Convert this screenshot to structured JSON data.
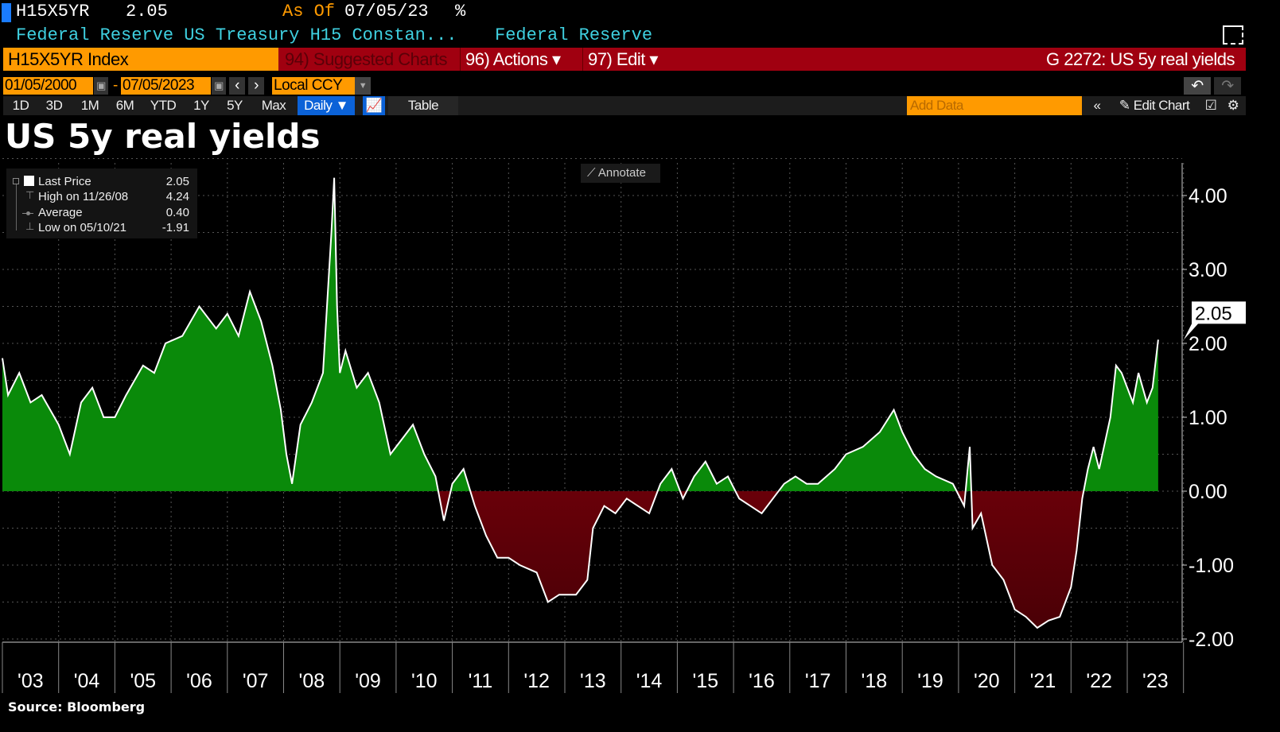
{
  "header": {
    "ticker": "H15X5YR",
    "price": "2.05",
    "as_of_label": "As Of",
    "as_of_date": "07/05/23",
    "unit": "%",
    "description": "Federal Reserve US Treasury H15 Constan...",
    "source_name": "Federal Reserve"
  },
  "command_bar": {
    "security": "H15X5YR Index",
    "suggested": "94) Suggested Charts",
    "actions": "96) Actions ▾",
    "edit": "97) Edit ▾",
    "chart_id": "G 2272: US 5y real yields"
  },
  "date_row": {
    "start": "01/05/2000",
    "sep": "-",
    "end": "07/05/2023",
    "currency": "Local CCY"
  },
  "toolbar": {
    "ranges": [
      "1D",
      "3D",
      "1M",
      "6M",
      "YTD",
      "1Y",
      "5Y",
      "Max"
    ],
    "frequency": "Daily ▼",
    "table": "Table",
    "add_data_placeholder": "Add Data",
    "edit_chart": "Edit Chart"
  },
  "legend": {
    "last_label": "Last Price",
    "last_value": "2.05",
    "high_label": "High on 11/26/08",
    "high_value": "4.24",
    "avg_label": "Average",
    "avg_value": "0.40",
    "low_label": "Low on 05/10/21",
    "low_value": "-1.91"
  },
  "annotate": "Annotate",
  "source": "Source: Bloomberg",
  "colors": {
    "positive": "#0a8a0a",
    "negative": "#a00010",
    "line": "#ffffff",
    "orange": "#ff9a00"
  },
  "chart_data": {
    "type": "area",
    "title": "US 5y real yields",
    "ylabel": "%",
    "ylim": [
      -2.1,
      4.6
    ],
    "xlim": [
      2003.0,
      2023.95
    ],
    "yticks": [
      4,
      3,
      2,
      1,
      0,
      -1,
      -2
    ],
    "ytick_labels": [
      "4.00",
      "3.00",
      "2.00",
      "1.00",
      "0.00",
      "-1.00",
      "-2.00"
    ],
    "xtick_labels": [
      "'03",
      "'04",
      "'05",
      "'06",
      "'07",
      "'08",
      "'09",
      "'10",
      "'11",
      "'12",
      "'13",
      "'14",
      "'15",
      "'16",
      "'17",
      "'18",
      "'19",
      "'20",
      "'21",
      "'22",
      "'23"
    ],
    "last_value_label": "2.05",
    "grid": true,
    "x": [
      2003.0,
      2003.1,
      2003.3,
      2003.5,
      2003.7,
      2004.0,
      2004.2,
      2004.4,
      2004.6,
      2004.8,
      2005.0,
      2005.2,
      2005.5,
      2005.7,
      2005.9,
      2006.2,
      2006.5,
      2006.8,
      2007.0,
      2007.2,
      2007.4,
      2007.6,
      2007.8,
      2007.95,
      2008.05,
      2008.15,
      2008.3,
      2008.5,
      2008.7,
      2008.85,
      2008.9,
      2008.95,
      2009.0,
      2009.1,
      2009.3,
      2009.5,
      2009.7,
      2009.9,
      2010.1,
      2010.3,
      2010.5,
      2010.7,
      2010.85,
      2011.0,
      2011.2,
      2011.4,
      2011.6,
      2011.8,
      2012.0,
      2012.2,
      2012.5,
      2012.7,
      2012.9,
      2013.2,
      2013.4,
      2013.5,
      2013.7,
      2013.9,
      2014.1,
      2014.3,
      2014.5,
      2014.7,
      2014.9,
      2015.1,
      2015.3,
      2015.5,
      2015.7,
      2015.9,
      2016.1,
      2016.3,
      2016.5,
      2016.7,
      2016.9,
      2017.1,
      2017.3,
      2017.5,
      2017.8,
      2018.0,
      2018.3,
      2018.6,
      2018.85,
      2019.0,
      2019.2,
      2019.4,
      2019.6,
      2019.9,
      2020.1,
      2020.2,
      2020.25,
      2020.4,
      2020.6,
      2020.8,
      2021.0,
      2021.2,
      2021.4,
      2021.6,
      2021.8,
      2022.0,
      2022.1,
      2022.2,
      2022.3,
      2022.4,
      2022.5,
      2022.7,
      2022.8,
      2022.9,
      2023.0,
      2023.1,
      2023.2,
      2023.35,
      2023.45,
      2023.55
    ],
    "values": [
      1.8,
      1.3,
      1.6,
      1.2,
      1.3,
      0.9,
      0.5,
      1.2,
      1.4,
      1.0,
      1.0,
      1.3,
      1.7,
      1.6,
      2.0,
      2.1,
      2.5,
      2.2,
      2.4,
      2.1,
      2.7,
      2.3,
      1.7,
      1.1,
      0.5,
      0.1,
      0.9,
      1.2,
      1.6,
      3.5,
      4.24,
      2.5,
      1.6,
      1.9,
      1.4,
      1.6,
      1.2,
      0.5,
      0.7,
      0.9,
      0.5,
      0.2,
      -0.4,
      0.1,
      0.3,
      -0.2,
      -0.6,
      -0.9,
      -0.9,
      -1.0,
      -1.1,
      -1.5,
      -1.4,
      -1.4,
      -1.2,
      -0.5,
      -0.2,
      -0.3,
      -0.1,
      -0.2,
      -0.3,
      0.1,
      0.3,
      -0.1,
      0.2,
      0.4,
      0.1,
      0.2,
      -0.1,
      -0.2,
      -0.3,
      -0.1,
      0.1,
      0.2,
      0.1,
      0.1,
      0.3,
      0.5,
      0.6,
      0.8,
      1.1,
      0.8,
      0.5,
      0.3,
      0.2,
      0.1,
      -0.2,
      0.6,
      -0.5,
      -0.3,
      -1.0,
      -1.2,
      -1.6,
      -1.7,
      -1.85,
      -1.75,
      -1.7,
      -1.3,
      -0.8,
      -0.1,
      0.3,
      0.6,
      0.3,
      1.0,
      1.7,
      1.6,
      1.4,
      1.2,
      1.6,
      1.2,
      1.4,
      2.05
    ]
  }
}
